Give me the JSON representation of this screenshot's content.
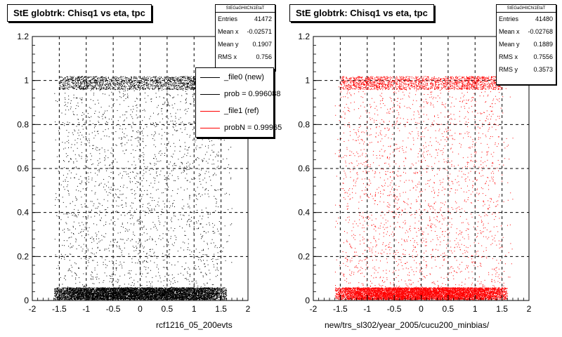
{
  "chart_data": [
    {
      "type": "scatter",
      "title": "StE globtrk: Chisq1 vs eta, tpc",
      "xlabel": "rcf1216_05_200evts",
      "ylabel": "",
      "xlim": [
        -2,
        2
      ],
      "ylim": [
        0,
        1.2
      ],
      "xticks": [
        "-2",
        "-1.5",
        "-1",
        "-0.5",
        "0",
        "0.5",
        "1",
        "1.5",
        "2"
      ],
      "yticks": [
        "0",
        "0.2",
        "0.4",
        "0.6",
        "0.8",
        "1",
        "1.2"
      ],
      "grid": true,
      "marker_color": "#000000",
      "series": [
        {
          "name": "",
          "description_points": [
            {
              "x": 0.0,
              "y": 0.03
            },
            {
              "x": -1.0,
              "y": 1.0
            },
            {
              "x": 1.0,
              "y": 1.0
            }
          ]
        }
      ],
      "stats": {
        "header": "StEGaGHitChi1EtaT",
        "rows": [
          {
            "label": "Entries",
            "value": "41472"
          },
          {
            "label": "Mean x",
            "value": "-0.02571"
          },
          {
            "label": "Mean y",
            "value": "0.1907"
          },
          {
            "label": "RMS x",
            "value": "0.756"
          }
        ]
      },
      "legend": {
        "entries": [
          {
            "label": "_file0 (new)",
            "color": "#000000"
          },
          {
            "label": "prob = 0.996088",
            "color": "#000000"
          },
          {
            "label": "_file1 (ref)",
            "color": "#ff0000"
          },
          {
            "label": "probN = 0.99965",
            "color": "#ff0000"
          }
        ]
      }
    },
    {
      "type": "scatter",
      "title": "StE globtrk: Chisq1 vs eta, tpc",
      "xlabel": "new/trs_sl302/year_2005/cucu200_minbias/",
      "ylabel": "",
      "xlim": [
        -2,
        2
      ],
      "ylim": [
        0,
        1.2
      ],
      "xticks": [
        "-2",
        "-1.5",
        "-1",
        "-0.5",
        "0",
        "0.5",
        "1",
        "1.5",
        "2"
      ],
      "yticks": [
        "0",
        "0.2",
        "0.4",
        "0.6",
        "0.8",
        "1",
        "1.2"
      ],
      "grid": true,
      "marker_color": "#ff0000",
      "stats": {
        "header": "StEGaGHitChi1EtaT",
        "rows": [
          {
            "label": "Entries",
            "value": "41480"
          },
          {
            "label": "Mean x",
            "value": "-0.02768"
          },
          {
            "label": "Mean y",
            "value": "0.1889"
          },
          {
            "label": "RMS x",
            "value": "0.7556"
          },
          {
            "label": "RMS y",
            "value": "0.3573"
          }
        ]
      }
    }
  ]
}
